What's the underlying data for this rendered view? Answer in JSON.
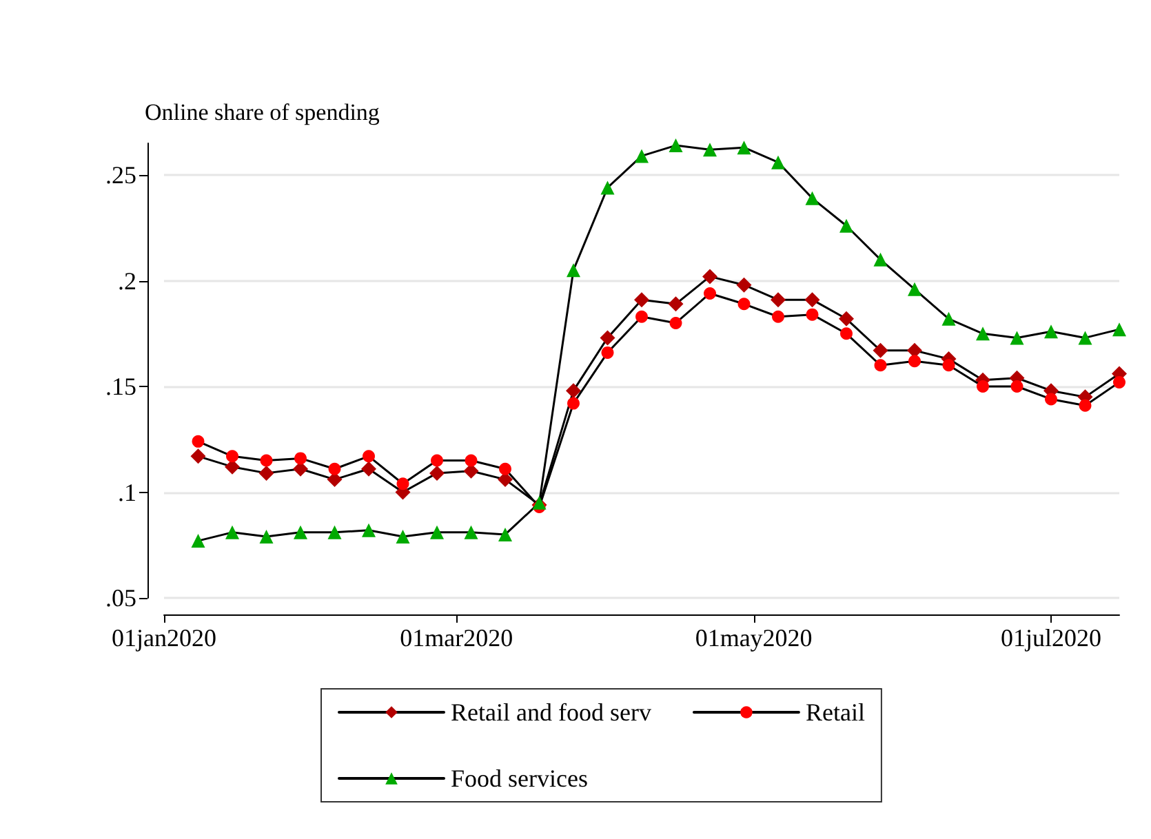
{
  "chart_data": {
    "type": "line",
    "ylabel": "Online share of spending",
    "x": [
      "2020-01-08",
      "2020-01-15",
      "2020-01-22",
      "2020-01-29",
      "2020-02-05",
      "2020-02-12",
      "2020-02-19",
      "2020-02-26",
      "2020-03-04",
      "2020-03-11",
      "2020-03-18",
      "2020-03-25",
      "2020-04-01",
      "2020-04-08",
      "2020-04-15",
      "2020-04-22",
      "2020-04-29",
      "2020-05-06",
      "2020-05-13",
      "2020-05-20",
      "2020-05-27",
      "2020-06-03",
      "2020-06-10",
      "2020-06-17",
      "2020-06-24",
      "2020-07-01",
      "2020-07-08",
      "2020-07-15"
    ],
    "series": [
      {
        "name": "Retail and food serv",
        "color": "#b30000",
        "marker": "diamond",
        "values": [
          0.117,
          0.112,
          0.109,
          0.111,
          0.106,
          0.111,
          0.1,
          0.109,
          0.11,
          0.106,
          0.094,
          0.148,
          0.173,
          0.191,
          0.189,
          0.202,
          0.198,
          0.191,
          0.191,
          0.182,
          0.167,
          0.167,
          0.163,
          0.153,
          0.154,
          0.148,
          0.145,
          0.156
        ]
      },
      {
        "name": "Retail",
        "color": "#ff0000",
        "marker": "circle",
        "values": [
          0.124,
          0.117,
          0.115,
          0.116,
          0.111,
          0.117,
          0.104,
          0.115,
          0.115,
          0.111,
          0.093,
          0.142,
          0.166,
          0.183,
          0.18,
          0.194,
          0.189,
          0.183,
          0.184,
          0.175,
          0.16,
          0.162,
          0.16,
          0.15,
          0.15,
          0.144,
          0.141,
          0.152
        ]
      },
      {
        "name": "Food services",
        "color": "#00aa00",
        "marker": "triangle",
        "values": [
          0.077,
          0.081,
          0.079,
          0.081,
          0.081,
          0.082,
          0.079,
          0.081,
          0.081,
          0.08,
          0.095,
          0.205,
          0.244,
          0.259,
          0.264,
          0.262,
          0.263,
          0.256,
          0.239,
          0.226,
          0.21,
          0.196,
          0.182,
          0.175,
          0.173,
          0.176,
          0.173,
          0.177
        ]
      }
    ],
    "xlim": [
      "2020-01-01",
      "2020-07-15"
    ],
    "xticks": [
      {
        "value": "2020-01-01",
        "label": "01jan2020"
      },
      {
        "value": "2020-03-01",
        "label": "01mar2020"
      },
      {
        "value": "2020-05-01",
        "label": "01may2020"
      },
      {
        "value": "2020-07-01",
        "label": "01jul2020"
      }
    ],
    "ylim": [
      0.05,
      0.265
    ],
    "yticks": [
      {
        "value": 0.05,
        "label": ".05"
      },
      {
        "value": 0.1,
        "label": ".1"
      },
      {
        "value": 0.15,
        "label": ".15"
      },
      {
        "value": 0.2,
        "label": ".2"
      },
      {
        "value": 0.25,
        "label": ".25"
      }
    ],
    "grid": "y",
    "legend": "bottom",
    "line_style": "solid"
  }
}
